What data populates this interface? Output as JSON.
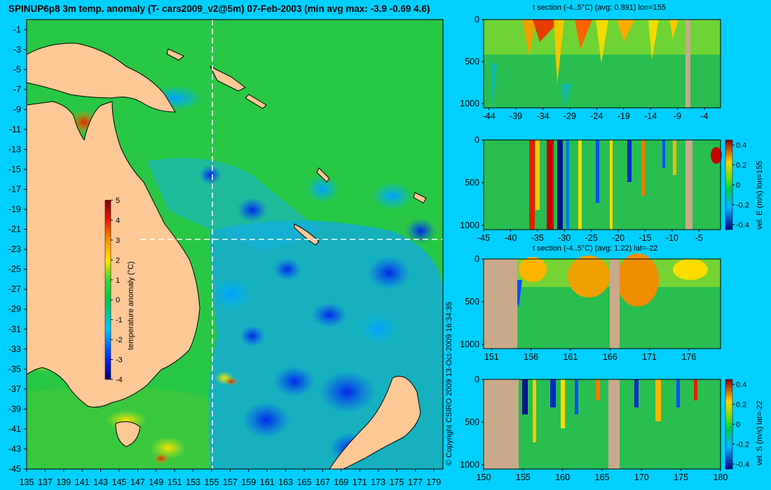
{
  "title": "SPINUP6p8 3m temp. anomaly (T- cars2009_v2@5m) 07-Feb-2003 (min avg max: -3.9 -0.69 4.6)",
  "copyright": "© Copyright CSIRO 2009  13-Oct-2009 16:34:35",
  "colors": {
    "background": "#00cfff",
    "land": "#fdc896",
    "mask": "#c8aa8a",
    "dashed_line": "#ffffff"
  },
  "chart_data": [
    {
      "type": "heatmap",
      "name": "map",
      "x_ticks": [
        "135",
        "137",
        "139",
        "141",
        "143",
        "145",
        "147",
        "149",
        "151",
        "153",
        "155",
        "157",
        "159",
        "161",
        "163",
        "165",
        "167",
        "169",
        "171",
        "173",
        "175",
        "177",
        "179"
      ],
      "y_ticks": [
        "-1",
        "-3",
        "-5",
        "-7",
        "-9",
        "-11",
        "-13",
        "-15",
        "-17",
        "-19",
        "-21",
        "-23",
        "-25",
        "-27",
        "-29",
        "-31",
        "-33",
        "-35",
        "-37",
        "-39",
        "-41",
        "-43",
        "-45"
      ],
      "xlim": [
        135,
        180
      ],
      "ylim": [
        -45,
        0
      ],
      "colorbar": {
        "label": "temperature anomaly (°C)",
        "ticks": [
          "5",
          "4",
          "3",
          "2",
          "1",
          "0",
          "-1",
          "-2",
          "-3",
          "-4"
        ],
        "range": [
          -4,
          5
        ]
      },
      "section_lines": {
        "lon": 155,
        "lat": -22
      }
    },
    {
      "type": "heatmap",
      "name": "panel1",
      "title": "t section (-4..5°C) (avg: 0.891) lon=155",
      "x_ticks": [
        "-44",
        "-39",
        "-34",
        "-29",
        "-24",
        "-19",
        "-14",
        "-9",
        "-4"
      ],
      "y_ticks": [
        "0",
        "500",
        "1000"
      ],
      "xlim": [
        -45,
        -1
      ],
      "ylim": [
        1050,
        0
      ]
    },
    {
      "type": "heatmap",
      "name": "panel2",
      "colorbar_label": "vel. E (m/s) lon=155",
      "x_ticks": [
        "-45",
        "-40",
        "-35",
        "-30",
        "-25",
        "-20",
        "-15",
        "-10",
        "-5"
      ],
      "y_ticks": [
        "0",
        "500",
        "1000"
      ],
      "cb_ticks": [
        "0.4",
        "0.2",
        "0",
        "-0.2",
        "-0.4"
      ],
      "xlim": [
        -45,
        -1
      ],
      "ylim": [
        1050,
        0
      ]
    },
    {
      "type": "heatmap",
      "name": "panel3",
      "title": "t section (-4..5°C) (avg: 1.22) lat=-22",
      "x_ticks": [
        "151",
        "156",
        "161",
        "166",
        "171",
        "176"
      ],
      "y_ticks": [
        "0",
        "500",
        "1000"
      ],
      "xlim": [
        150,
        180
      ],
      "ylim": [
        1050,
        0
      ]
    },
    {
      "type": "heatmap",
      "name": "panel4",
      "colorbar_label": "vel. S (m/s) lat=-22",
      "x_ticks": [
        "150",
        "155",
        "160",
        "165",
        "170",
        "175",
        "180"
      ],
      "y_ticks": [
        "0",
        "500",
        "1000"
      ],
      "cb_ticks": [
        "0.4",
        "0.2",
        "0",
        "-0.2",
        "-0.4"
      ],
      "xlim": [
        150,
        180
      ],
      "ylim": [
        1050,
        0
      ]
    }
  ]
}
